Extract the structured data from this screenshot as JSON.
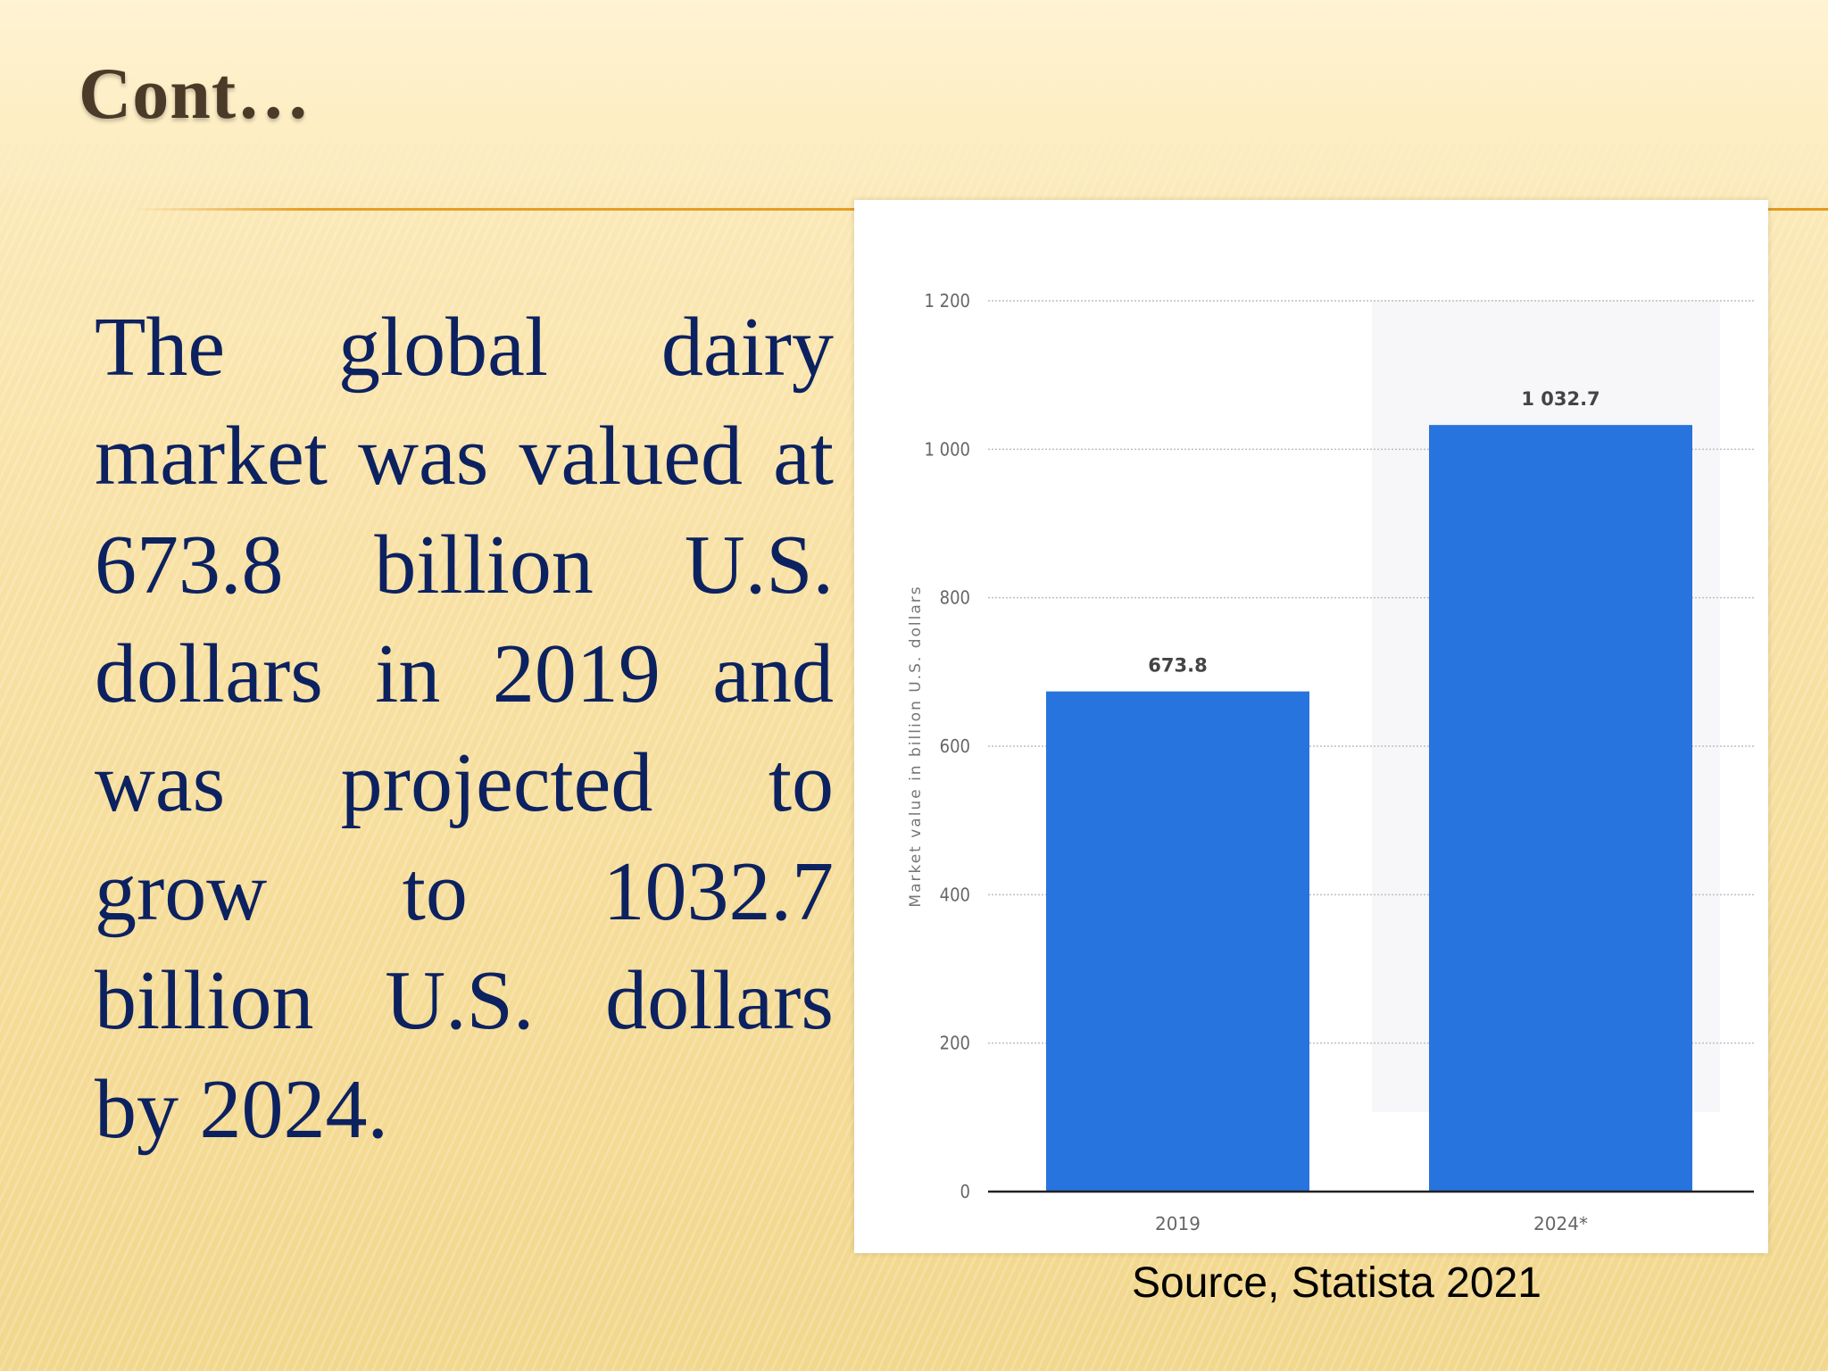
{
  "slide": {
    "title": "Cont…",
    "body": "The global dairy market was valued at 673.8 billion U.S. dollars in 2019 and was projected to grow to 1032.7 billion U.S. dollars by 2024.",
    "source": "Source, Statista 2021"
  },
  "chart_data": {
    "type": "bar",
    "categories": [
      "2019",
      "2024*"
    ],
    "values": [
      673.8,
      1032.7
    ],
    "value_labels": [
      "673.8",
      "1 032.7"
    ],
    "ylabel": "Market value in billion U.S. dollars",
    "ylim": [
      0,
      1200
    ],
    "yticks": [
      0,
      200,
      400,
      600,
      800,
      1000,
      1200
    ],
    "ytick_labels": [
      "0",
      "200",
      "400",
      "600",
      "800",
      "1 000",
      "1 200"
    ],
    "grid": true,
    "bar_color": "#2874de"
  }
}
